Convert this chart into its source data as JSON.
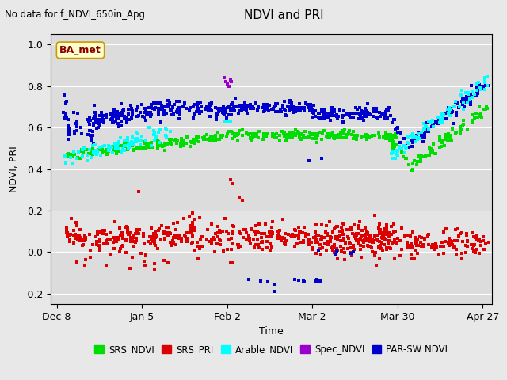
{
  "title": "NDVI and PRI",
  "subtitle": "No data for f_NDVI_650in_Apg",
  "ylabel": "NDVI, PRI",
  "xlabel": "Time",
  "ba_met_label": "BA_met",
  "ylim": [
    -0.25,
    1.05
  ],
  "bg_color": "#e8e8e8",
  "plot_bg_color": "#dcdcdc",
  "colors": {
    "SRS_NDVI": "#00dd00",
    "SRS_PRI": "#dd0000",
    "Arable_NDVI": "#00ffff",
    "Spec_NDVI": "#9900cc",
    "PAR_SW_NDVI": "#0000cc"
  },
  "legend_labels": [
    "SRS_NDVI",
    "SRS_PRI",
    "Arable_NDVI",
    "Spec_NDVI",
    "PAR-SW NDVI"
  ],
  "legend_colors": [
    "#00dd00",
    "#dd0000",
    "#00ffff",
    "#9900cc",
    "#0000cc"
  ],
  "x_tick_labels": [
    "Dec 8",
    "Jan 5",
    "Feb 2",
    "Mar 2",
    "Mar 30",
    "Apr 27"
  ],
  "x_tick_days": [
    0,
    28,
    56,
    84,
    112,
    140
  ],
  "yticks": [
    -0.2,
    0.0,
    0.2,
    0.4,
    0.6,
    0.8,
    1.0
  ]
}
